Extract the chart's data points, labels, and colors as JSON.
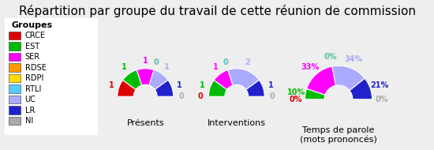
{
  "title": "Répartition par groupe du travail de cette réunion de commission",
  "groups": [
    "CRCE",
    "EST",
    "SER",
    "RDSE",
    "RDPI",
    "RTLI",
    "UC",
    "LR",
    "NI"
  ],
  "colors": [
    "#dd0000",
    "#00bb00",
    "#ff00ff",
    "#ff9900",
    "#ffdd00",
    "#55ccff",
    "#aaaaff",
    "#2222cc",
    "#aaaaaa"
  ],
  "legend_title": "Groupes",
  "charts": [
    {
      "title": "Présents",
      "values": [
        1,
        1,
        1,
        0,
        0,
        0,
        1,
        1,
        0
      ],
      "labels": [
        "1",
        "1",
        "1",
        "0",
        "0",
        "0",
        "1",
        "1",
        "0"
      ]
    },
    {
      "title": "Interventions",
      "values": [
        0,
        1,
        1,
        0,
        0,
        0,
        2,
        1,
        0
      ],
      "labels": [
        "0",
        "1",
        "1",
        "0",
        "0",
        "0",
        "2",
        "1",
        "0"
      ]
    },
    {
      "title": "Temps de parole\n(mots prononcés)",
      "values": [
        0,
        10,
        33,
        0,
        0,
        0,
        34,
        21,
        0
      ],
      "labels": [
        "0%",
        "10%",
        "33%",
        "0%",
        "0%",
        "0%",
        "34%",
        "21%",
        "0%"
      ]
    }
  ],
  "background_color": "#eeeeee",
  "title_fontsize": 11,
  "label_fontsize": 7,
  "legend_fontsize": 8,
  "subtitle_fontsize": 8
}
